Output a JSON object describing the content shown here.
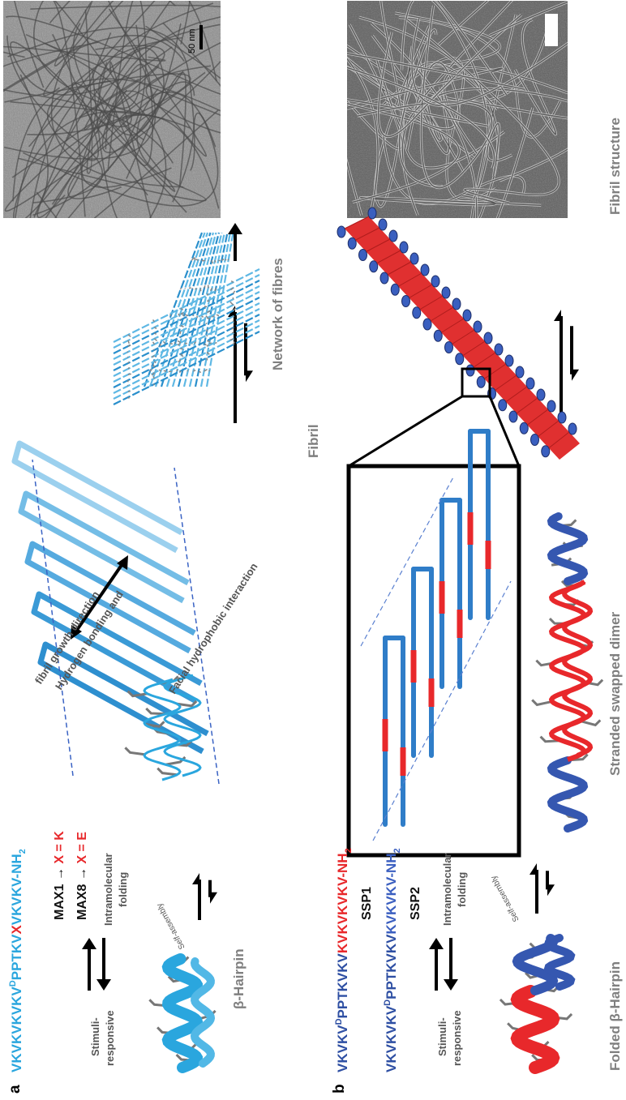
{
  "panel_a": {
    "label": "a",
    "sequence": [
      "VKVKVKVKV",
      "D",
      "PPTKV",
      "X",
      "VKVKV-NH",
      "2"
    ],
    "max1": [
      "MAX1 →",
      "X = K"
    ],
    "max8": [
      "MAX8 →",
      "X = E"
    ],
    "stimuli": [
      "Stimuli-",
      "responsive"
    ],
    "folding": [
      "Intramolecular",
      "folding"
    ],
    "self_assembly": "Self-assembly",
    "hairpin_label": "β-Hairpin",
    "fibril_notes": [
      "Hydrogen bonding and",
      "fibril growth direction",
      "Facial hydrophobic interaction"
    ],
    "fibril_label": "Fibril",
    "network_label": "Network of fibres",
    "scale_bar": "50 nm"
  },
  "panel_b": {
    "label": "b",
    "ssp1_sequence": [
      "VKVKV",
      "D",
      "PPTKVKV",
      "KVKVKVKV-NH",
      "2"
    ],
    "ssp1": "SSP1",
    "ssp2_sequence": [
      "VKVKVKV",
      "D",
      "PPTKVKV",
      "KVKVKV-NH",
      "2"
    ],
    "ssp2": "SSP2",
    "stimuli": [
      "Stimuli-",
      "responsive"
    ],
    "folding": [
      "Intramolecular",
      "folding"
    ],
    "self_assembly": "Self-assembly",
    "hairpin_label": "Folded β-Hairpin",
    "dimer_label": "Stranded swapped dimer",
    "fibril_label": "Fibril structure"
  }
}
